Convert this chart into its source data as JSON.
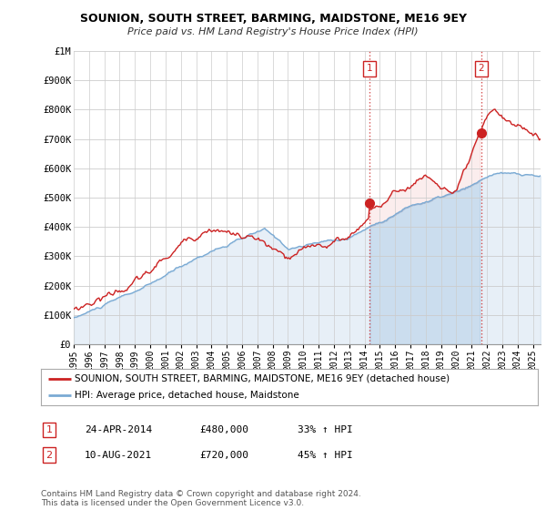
{
  "title": "SOUNION, SOUTH STREET, BARMING, MAIDSTONE, ME16 9EY",
  "subtitle": "Price paid vs. HM Land Registry's House Price Index (HPI)",
  "ylim": [
    0,
    1000000
  ],
  "yticks": [
    0,
    100000,
    200000,
    300000,
    400000,
    500000,
    600000,
    700000,
    800000,
    900000,
    1000000
  ],
  "ytick_labels": [
    "£0",
    "£100K",
    "£200K",
    "£300K",
    "£400K",
    "£500K",
    "£600K",
    "£700K",
    "£800K",
    "£900K",
    "£1M"
  ],
  "hpi_color": "#7aaad4",
  "price_color": "#cc2222",
  "sale1_date": 2014.31,
  "sale1_price": 480000,
  "sale2_date": 2021.61,
  "sale2_price": 720000,
  "legend_line1": "SOUNION, SOUTH STREET, BARMING, MAIDSTONE, ME16 9EY (detached house)",
  "legend_line2": "HPI: Average price, detached house, Maidstone",
  "note1_date": "24-APR-2014",
  "note1_price": "£480,000",
  "note1_pct": "33% ↑ HPI",
  "note2_date": "10-AUG-2021",
  "note2_price": "£720,000",
  "note2_pct": "45% ↑ HPI",
  "footnote": "Contains HM Land Registry data © Crown copyright and database right 2024.\nThis data is licensed under the Open Government Licence v3.0.",
  "xmin": 1995.0,
  "xmax": 2025.5,
  "background_color": "#ffffff",
  "grid_color": "#cccccc"
}
